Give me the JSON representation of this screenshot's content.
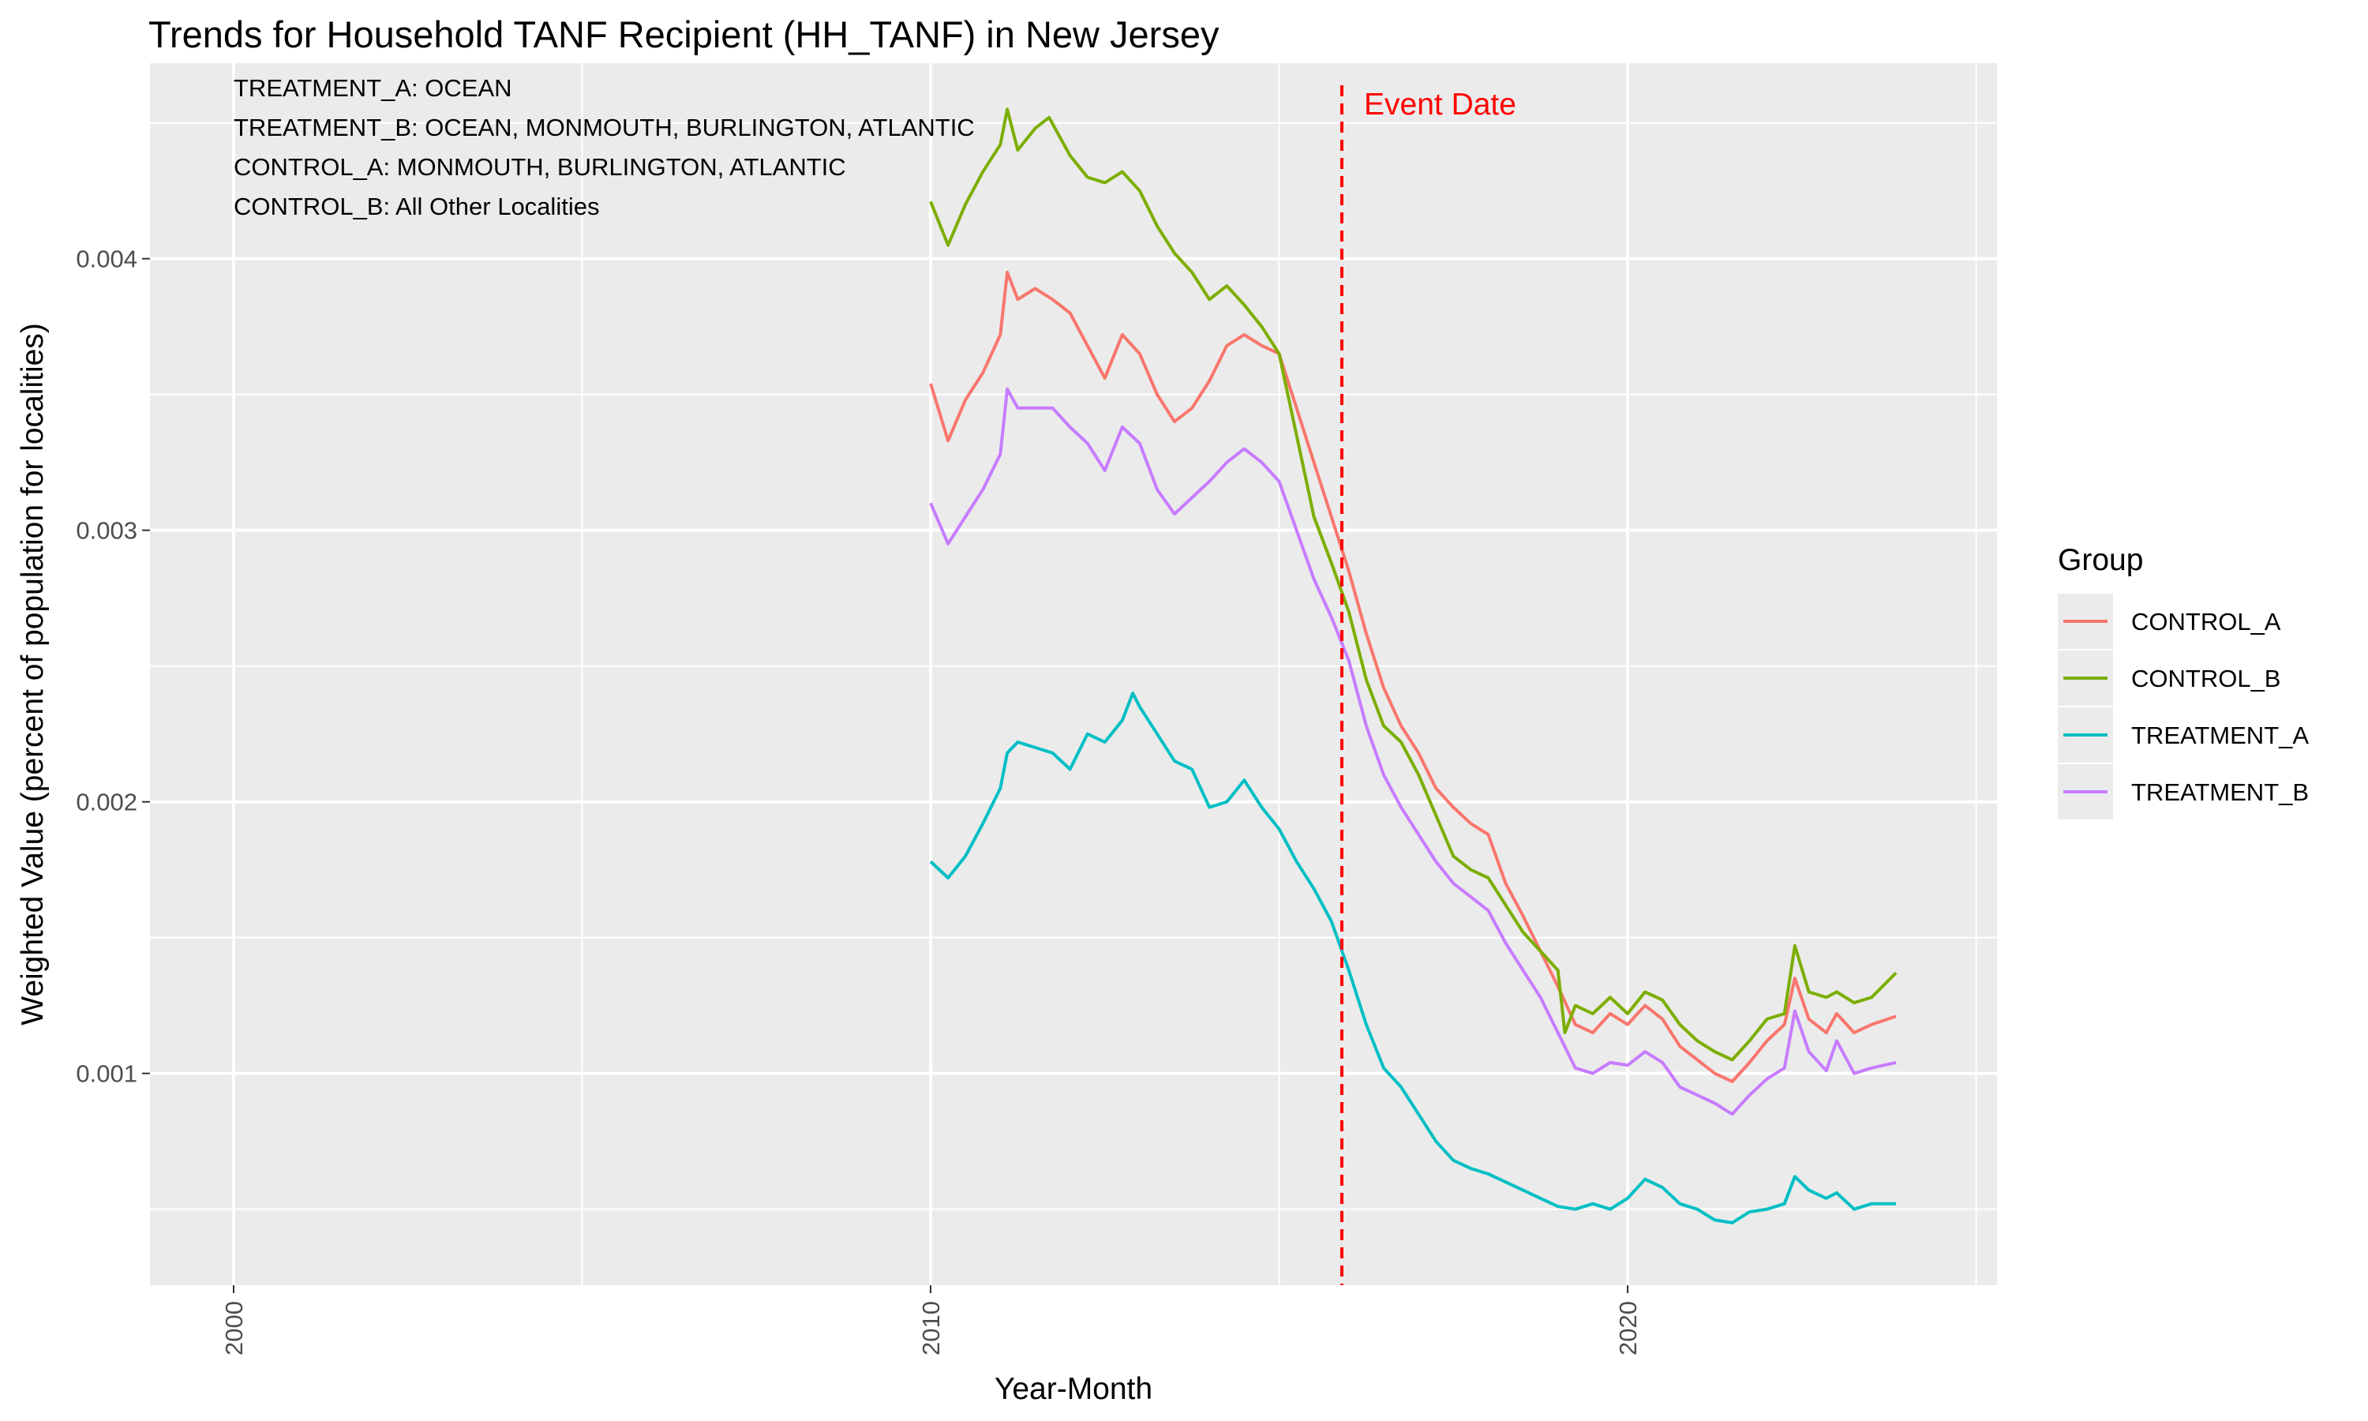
{
  "chart_data": {
    "type": "line",
    "title": "Trends for Household TANF Recipient (HH_TANF) in New Jersey",
    "xlabel": "Year-Month",
    "ylabel": "Weighted Value (percent of population for localities)",
    "xlim": [
      1998.8,
      2025.3
    ],
    "ylim": [
      0.00022,
      0.00472
    ],
    "x_ticks": [
      2000,
      2010,
      2020
    ],
    "x_tick_labels": [
      "2000",
      "2010",
      "2020"
    ],
    "y_ticks": [
      0.001,
      0.002,
      0.003,
      0.004
    ],
    "y_tick_labels": [
      "0.001",
      "0.002",
      "0.003",
      "0.004"
    ],
    "grid": true,
    "legend": {
      "title": "Group",
      "position": "right"
    },
    "annotations": [
      "TREATMENT_A: OCEAN",
      "TREATMENT_B: OCEAN, MONMOUTH, BURLINGTON, ATLANTIC",
      "CONTROL_A: MONMOUTH, BURLINGTON, ATLANTIC",
      "CONTROL_B: All Other Localities"
    ],
    "event": {
      "label": "Event Date",
      "x": 2015.9,
      "color": "#ff0000"
    },
    "series": [
      {
        "name": "CONTROL_A",
        "color": "#F8766D",
        "points": [
          [
            2010.0,
            0.00354
          ],
          [
            2010.25,
            0.00333
          ],
          [
            2010.5,
            0.00348
          ],
          [
            2010.75,
            0.00358
          ],
          [
            2011.0,
            0.00372
          ],
          [
            2011.1,
            0.00395
          ],
          [
            2011.25,
            0.00385
          ],
          [
            2011.5,
            0.00389
          ],
          [
            2011.75,
            0.00385
          ],
          [
            2012.0,
            0.0038
          ],
          [
            2012.25,
            0.00368
          ],
          [
            2012.5,
            0.00356
          ],
          [
            2012.75,
            0.00372
          ],
          [
            2013.0,
            0.00365
          ],
          [
            2013.25,
            0.0035
          ],
          [
            2013.5,
            0.0034
          ],
          [
            2013.75,
            0.00345
          ],
          [
            2014.0,
            0.00355
          ],
          [
            2014.25,
            0.00368
          ],
          [
            2014.5,
            0.00372
          ],
          [
            2014.75,
            0.00368
          ],
          [
            2015.0,
            0.00365
          ],
          [
            2015.25,
            0.00345
          ],
          [
            2015.5,
            0.00325
          ],
          [
            2015.75,
            0.00305
          ],
          [
            2016.0,
            0.00285
          ],
          [
            2016.25,
            0.00262
          ],
          [
            2016.5,
            0.00242
          ],
          [
            2016.75,
            0.00228
          ],
          [
            2017.0,
            0.00218
          ],
          [
            2017.25,
            0.00205
          ],
          [
            2017.5,
            0.00198
          ],
          [
            2017.75,
            0.00192
          ],
          [
            2018.0,
            0.00188
          ],
          [
            2018.25,
            0.0017
          ],
          [
            2018.5,
            0.00158
          ],
          [
            2018.75,
            0.00145
          ],
          [
            2019.0,
            0.00132
          ],
          [
            2019.25,
            0.00118
          ],
          [
            2019.5,
            0.00115
          ],
          [
            2019.75,
            0.00122
          ],
          [
            2020.0,
            0.00118
          ],
          [
            2020.25,
            0.00125
          ],
          [
            2020.5,
            0.0012
          ],
          [
            2020.75,
            0.0011
          ],
          [
            2021.0,
            0.00105
          ],
          [
            2021.25,
            0.001
          ],
          [
            2021.5,
            0.00097
          ],
          [
            2021.75,
            0.00104
          ],
          [
            2022.0,
            0.00112
          ],
          [
            2022.25,
            0.00118
          ],
          [
            2022.4,
            0.00135
          ],
          [
            2022.6,
            0.0012
          ],
          [
            2022.85,
            0.00115
          ],
          [
            2023.0,
            0.00122
          ],
          [
            2023.25,
            0.00115
          ],
          [
            2023.5,
            0.00118
          ],
          [
            2023.85,
            0.00121
          ]
        ]
      },
      {
        "name": "CONTROL_B",
        "color": "#7CAE00",
        "points": [
          [
            2010.0,
            0.00421
          ],
          [
            2010.25,
            0.00405
          ],
          [
            2010.5,
            0.0042
          ],
          [
            2010.75,
            0.00432
          ],
          [
            2011.0,
            0.00442
          ],
          [
            2011.1,
            0.00455
          ],
          [
            2011.25,
            0.0044
          ],
          [
            2011.5,
            0.00448
          ],
          [
            2011.7,
            0.00452
          ],
          [
            2012.0,
            0.00438
          ],
          [
            2012.25,
            0.0043
          ],
          [
            2012.5,
            0.00428
          ],
          [
            2012.75,
            0.00432
          ],
          [
            2013.0,
            0.00425
          ],
          [
            2013.25,
            0.00412
          ],
          [
            2013.5,
            0.00402
          ],
          [
            2013.75,
            0.00395
          ],
          [
            2014.0,
            0.00385
          ],
          [
            2014.25,
            0.0039
          ],
          [
            2014.5,
            0.00383
          ],
          [
            2014.75,
            0.00375
          ],
          [
            2015.0,
            0.00365
          ],
          [
            2015.25,
            0.00335
          ],
          [
            2015.5,
            0.00305
          ],
          [
            2015.75,
            0.00288
          ],
          [
            2016.0,
            0.0027
          ],
          [
            2016.25,
            0.00245
          ],
          [
            2016.5,
            0.00228
          ],
          [
            2016.75,
            0.00222
          ],
          [
            2017.0,
            0.0021
          ],
          [
            2017.25,
            0.00195
          ],
          [
            2017.5,
            0.0018
          ],
          [
            2017.75,
            0.00175
          ],
          [
            2018.0,
            0.00172
          ],
          [
            2018.25,
            0.00162
          ],
          [
            2018.5,
            0.00152
          ],
          [
            2018.75,
            0.00145
          ],
          [
            2019.0,
            0.00138
          ],
          [
            2019.1,
            0.00115
          ],
          [
            2019.25,
            0.00125
          ],
          [
            2019.5,
            0.00122
          ],
          [
            2019.75,
            0.00128
          ],
          [
            2020.0,
            0.00122
          ],
          [
            2020.25,
            0.0013
          ],
          [
            2020.5,
            0.00127
          ],
          [
            2020.75,
            0.00118
          ],
          [
            2021.0,
            0.00112
          ],
          [
            2021.25,
            0.00108
          ],
          [
            2021.5,
            0.00105
          ],
          [
            2021.75,
            0.00112
          ],
          [
            2022.0,
            0.0012
          ],
          [
            2022.25,
            0.00122
          ],
          [
            2022.4,
            0.00147
          ],
          [
            2022.6,
            0.0013
          ],
          [
            2022.85,
            0.00128
          ],
          [
            2023.0,
            0.0013
          ],
          [
            2023.25,
            0.00126
          ],
          [
            2023.5,
            0.00128
          ],
          [
            2023.85,
            0.00137
          ]
        ]
      },
      {
        "name": "TREATMENT_A",
        "color": "#00BFC4",
        "points": [
          [
            2010.0,
            0.00178
          ],
          [
            2010.25,
            0.00172
          ],
          [
            2010.5,
            0.0018
          ],
          [
            2010.75,
            0.00192
          ],
          [
            2011.0,
            0.00205
          ],
          [
            2011.1,
            0.00218
          ],
          [
            2011.25,
            0.00222
          ],
          [
            2011.5,
            0.0022
          ],
          [
            2011.75,
            0.00218
          ],
          [
            2012.0,
            0.00212
          ],
          [
            2012.25,
            0.00225
          ],
          [
            2012.5,
            0.00222
          ],
          [
            2012.75,
            0.0023
          ],
          [
            2012.9,
            0.0024
          ],
          [
            2013.0,
            0.00235
          ],
          [
            2013.25,
            0.00225
          ],
          [
            2013.5,
            0.00215
          ],
          [
            2013.75,
            0.00212
          ],
          [
            2014.0,
            0.00198
          ],
          [
            2014.25,
            0.002
          ],
          [
            2014.5,
            0.00208
          ],
          [
            2014.75,
            0.00198
          ],
          [
            2015.0,
            0.0019
          ],
          [
            2015.25,
            0.00178
          ],
          [
            2015.5,
            0.00168
          ],
          [
            2015.75,
            0.00156
          ],
          [
            2016.0,
            0.00138
          ],
          [
            2016.25,
            0.00118
          ],
          [
            2016.5,
            0.00102
          ],
          [
            2016.75,
            0.00095
          ],
          [
            2017.0,
            0.00085
          ],
          [
            2017.25,
            0.00075
          ],
          [
            2017.5,
            0.00068
          ],
          [
            2017.75,
            0.00065
          ],
          [
            2018.0,
            0.00063
          ],
          [
            2018.25,
            0.0006
          ],
          [
            2018.5,
            0.00057
          ],
          [
            2018.75,
            0.00054
          ],
          [
            2019.0,
            0.00051
          ],
          [
            2019.25,
            0.0005
          ],
          [
            2019.5,
            0.00052
          ],
          [
            2019.75,
            0.0005
          ],
          [
            2020.0,
            0.00054
          ],
          [
            2020.25,
            0.00061
          ],
          [
            2020.5,
            0.00058
          ],
          [
            2020.75,
            0.00052
          ],
          [
            2021.0,
            0.0005
          ],
          [
            2021.25,
            0.00046
          ],
          [
            2021.5,
            0.00045
          ],
          [
            2021.75,
            0.00049
          ],
          [
            2022.0,
            0.0005
          ],
          [
            2022.25,
            0.00052
          ],
          [
            2022.4,
            0.00062
          ],
          [
            2022.6,
            0.00057
          ],
          [
            2022.85,
            0.00054
          ],
          [
            2023.0,
            0.00056
          ],
          [
            2023.25,
            0.0005
          ],
          [
            2023.5,
            0.00052
          ],
          [
            2023.85,
            0.00052
          ]
        ]
      },
      {
        "name": "TREATMENT_B",
        "color": "#C77CFF",
        "points": [
          [
            2010.0,
            0.0031
          ],
          [
            2010.25,
            0.00295
          ],
          [
            2010.5,
            0.00305
          ],
          [
            2010.75,
            0.00315
          ],
          [
            2011.0,
            0.00328
          ],
          [
            2011.1,
            0.00352
          ],
          [
            2011.25,
            0.00345
          ],
          [
            2011.5,
            0.00345
          ],
          [
            2011.75,
            0.00345
          ],
          [
            2012.0,
            0.00338
          ],
          [
            2012.25,
            0.00332
          ],
          [
            2012.5,
            0.00322
          ],
          [
            2012.75,
            0.00338
          ],
          [
            2013.0,
            0.00332
          ],
          [
            2013.25,
            0.00315
          ],
          [
            2013.5,
            0.00306
          ],
          [
            2013.75,
            0.00312
          ],
          [
            2014.0,
            0.00318
          ],
          [
            2014.25,
            0.00325
          ],
          [
            2014.5,
            0.0033
          ],
          [
            2014.75,
            0.00325
          ],
          [
            2015.0,
            0.00318
          ],
          [
            2015.25,
            0.003
          ],
          [
            2015.5,
            0.00282
          ],
          [
            2015.75,
            0.00268
          ],
          [
            2016.0,
            0.00252
          ],
          [
            2016.25,
            0.00228
          ],
          [
            2016.5,
            0.0021
          ],
          [
            2016.75,
            0.00198
          ],
          [
            2017.0,
            0.00188
          ],
          [
            2017.25,
            0.00178
          ],
          [
            2017.5,
            0.0017
          ],
          [
            2017.75,
            0.00165
          ],
          [
            2018.0,
            0.0016
          ],
          [
            2018.25,
            0.00148
          ],
          [
            2018.5,
            0.00138
          ],
          [
            2018.75,
            0.00128
          ],
          [
            2019.0,
            0.00115
          ],
          [
            2019.25,
            0.00102
          ],
          [
            2019.5,
            0.001
          ],
          [
            2019.75,
            0.00104
          ],
          [
            2020.0,
            0.00103
          ],
          [
            2020.25,
            0.00108
          ],
          [
            2020.5,
            0.00104
          ],
          [
            2020.75,
            0.00095
          ],
          [
            2021.0,
            0.00092
          ],
          [
            2021.25,
            0.00089
          ],
          [
            2021.5,
            0.00085
          ],
          [
            2021.75,
            0.00092
          ],
          [
            2022.0,
            0.00098
          ],
          [
            2022.25,
            0.00102
          ],
          [
            2022.4,
            0.00123
          ],
          [
            2022.6,
            0.00108
          ],
          [
            2022.85,
            0.00101
          ],
          [
            2023.0,
            0.00112
          ],
          [
            2023.25,
            0.001
          ],
          [
            2023.5,
            0.00102
          ],
          [
            2023.85,
            0.00104
          ]
        ]
      }
    ]
  }
}
